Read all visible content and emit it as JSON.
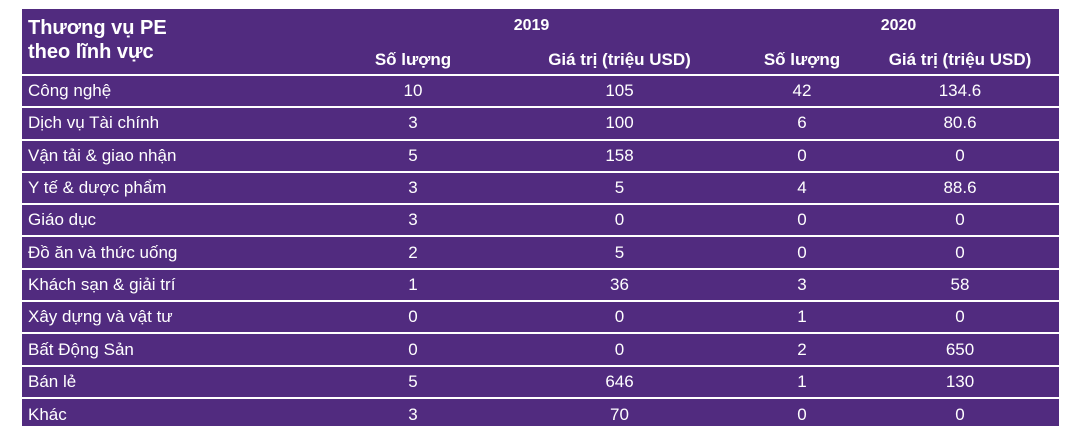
{
  "table": {
    "title_line1": "Thương vụ PE",
    "title_line2": "theo lĩnh vực",
    "year_2019": "2019",
    "year_2020": "2020",
    "col_count_2019": "Số lượng",
    "col_value_2019": "Giá trị (triệu USD)",
    "col_count_2020": "Số lượng",
    "col_value_2020": "Giá trị (triệu USD)",
    "rows": [
      {
        "sector": "Công nghệ",
        "count_2019": "10",
        "value_2019": "105",
        "count_2020": "42",
        "value_2020": "134.6"
      },
      {
        "sector": "Dịch vụ Tài chính",
        "count_2019": "3",
        "value_2019": "100",
        "count_2020": "6",
        "value_2020": "80.6"
      },
      {
        "sector": "Vận tải & giao nhận",
        "count_2019": "5",
        "value_2019": "158",
        "count_2020": "0",
        "value_2020": "0"
      },
      {
        "sector": "Y tế & dược phẩm",
        "count_2019": "3",
        "value_2019": "5",
        "count_2020": "4",
        "value_2020": "88.6"
      },
      {
        "sector": "Giáo dục",
        "count_2019": "3",
        "value_2019": "0",
        "count_2020": "0",
        "value_2020": "0"
      },
      {
        "sector": "Đồ ăn và thức uống",
        "count_2019": "2",
        "value_2019": "5",
        "count_2020": "0",
        "value_2020": "0"
      },
      {
        "sector": "Khách sạn & giải trí",
        "count_2019": "1",
        "value_2019": "36",
        "count_2020": "3",
        "value_2020": "58"
      },
      {
        "sector": "Xây dựng và vật tư",
        "count_2019": "0",
        "value_2019": "0",
        "count_2020": "1",
        "value_2020": "0"
      },
      {
        "sector": "Bất Động Sản",
        "count_2019": "0",
        "value_2019": "0",
        "count_2020": "2",
        "value_2020": "650"
      },
      {
        "sector": "Bán lẻ",
        "count_2019": "5",
        "value_2019": "646",
        "count_2020": "1",
        "value_2020": "130"
      },
      {
        "sector": "Khác",
        "count_2019": "3",
        "value_2019": "70",
        "count_2020": "0",
        "value_2020": "0"
      }
    ]
  },
  "colors": {
    "background": "#512b7f",
    "text": "#ffffff",
    "divider": "#ffffff"
  }
}
